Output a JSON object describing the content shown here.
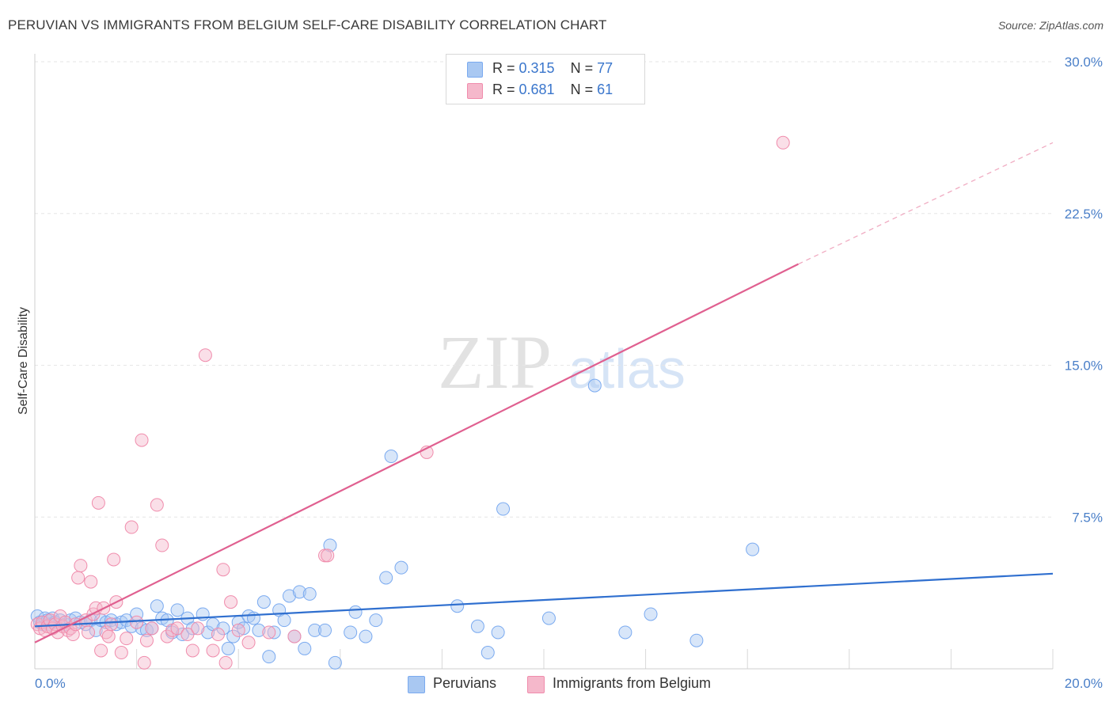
{
  "header": {
    "title": "PERUVIAN VS IMMIGRANTS FROM BELGIUM SELF-CARE DISABILITY CORRELATION CHART",
    "source": "Source: ZipAtlas.com"
  },
  "watermark": {
    "zip": "ZIP",
    "atlas": "atlas"
  },
  "legend": {
    "rows": [
      {
        "r_label": "R = ",
        "r_value": "0.315",
        "n_label": "N = ",
        "n_value": "77",
        "color": "#a9c8f2"
      },
      {
        "r_label": "R = ",
        "r_value": "0.681",
        "n_label": "N = ",
        "n_value": "61",
        "color": "#f5b8cb"
      }
    ]
  },
  "bottom_legend": {
    "items": [
      {
        "label": "Peruvians",
        "color": "#a9c8f2"
      },
      {
        "label": "Immigrants from Belgium",
        "color": "#f5b8cb"
      }
    ]
  },
  "chart_data": {
    "type": "scatter",
    "title": "PERUVIAN VS IMMIGRANTS FROM BELGIUM SELF-CARE DISABILITY CORRELATION CHART",
    "xlabel": "",
    "ylabel": "Self-Care Disability",
    "xlim": [
      0,
      20
    ],
    "ylim": [
      0,
      30
    ],
    "x_tick_labels": [
      "0.0%",
      "20.0%"
    ],
    "y_ticks": [
      7.5,
      15.0,
      22.5,
      30.0
    ],
    "y_tick_labels": [
      "7.5%",
      "15.0%",
      "22.5%",
      "30.0%"
    ],
    "grid": true,
    "legend_position": "top-center",
    "series": [
      {
        "name": "Peruvians",
        "color": "#7aaaf0",
        "trend": {
          "x": [
            0,
            20
          ],
          "y": [
            2.1,
            4.7
          ]
        },
        "points": [
          [
            0.05,
            2.6
          ],
          [
            0.1,
            2.3
          ],
          [
            0.15,
            2.2
          ],
          [
            0.2,
            2.5
          ],
          [
            0.25,
            2.4
          ],
          [
            0.3,
            2.2
          ],
          [
            0.35,
            2.5
          ],
          [
            0.4,
            2.3
          ],
          [
            0.5,
            2.4
          ],
          [
            0.6,
            2.2
          ],
          [
            0.7,
            2.4
          ],
          [
            0.8,
            2.5
          ],
          [
            0.9,
            2.3
          ],
          [
            1.0,
            2.2
          ],
          [
            1.1,
            2.4
          ],
          [
            1.2,
            1.9
          ],
          [
            1.3,
            2.4
          ],
          [
            1.4,
            2.3
          ],
          [
            1.5,
            2.4
          ],
          [
            1.6,
            2.2
          ],
          [
            1.7,
            2.3
          ],
          [
            1.8,
            2.4
          ],
          [
            1.9,
            2.1
          ],
          [
            2.0,
            2.7
          ],
          [
            2.1,
            2.0
          ],
          [
            2.2,
            1.9
          ],
          [
            2.3,
            2.0
          ],
          [
            2.4,
            3.1
          ],
          [
            2.5,
            2.5
          ],
          [
            2.6,
            2.4
          ],
          [
            2.7,
            1.8
          ],
          [
            2.8,
            2.9
          ],
          [
            2.9,
            1.7
          ],
          [
            3.0,
            2.5
          ],
          [
            3.1,
            2.0
          ],
          [
            3.3,
            2.7
          ],
          [
            3.4,
            1.8
          ],
          [
            3.5,
            2.2
          ],
          [
            3.7,
            2.0
          ],
          [
            3.8,
            1.0
          ],
          [
            3.9,
            1.6
          ],
          [
            4.0,
            2.3
          ],
          [
            4.1,
            2.0
          ],
          [
            4.2,
            2.6
          ],
          [
            4.3,
            2.5
          ],
          [
            4.4,
            1.9
          ],
          [
            4.5,
            3.3
          ],
          [
            4.6,
            0.6
          ],
          [
            4.7,
            1.8
          ],
          [
            4.8,
            2.9
          ],
          [
            4.9,
            2.4
          ],
          [
            5.0,
            3.6
          ],
          [
            5.1,
            1.6
          ],
          [
            5.2,
            3.8
          ],
          [
            5.3,
            1.0
          ],
          [
            5.4,
            3.7
          ],
          [
            5.5,
            1.9
          ],
          [
            5.7,
            1.9
          ],
          [
            5.8,
            6.1
          ],
          [
            5.9,
            0.3
          ],
          [
            6.2,
            1.8
          ],
          [
            6.3,
            2.8
          ],
          [
            6.5,
            1.6
          ],
          [
            6.7,
            2.4
          ],
          [
            6.9,
            4.5
          ],
          [
            7.0,
            10.5
          ],
          [
            7.2,
            5.0
          ],
          [
            8.3,
            3.1
          ],
          [
            8.7,
            2.1
          ],
          [
            8.9,
            0.8
          ],
          [
            9.1,
            1.8
          ],
          [
            9.2,
            7.9
          ],
          [
            10.1,
            2.5
          ],
          [
            11.0,
            14.0
          ],
          [
            11.6,
            1.8
          ],
          [
            12.1,
            2.7
          ],
          [
            13.0,
            1.4
          ],
          [
            14.1,
            5.9
          ]
        ]
      },
      {
        "name": "Immigrants from Belgium",
        "color": "#f08cac",
        "trend": {
          "x": [
            0,
            15
          ],
          "y": [
            1.3,
            20.0
          ]
        },
        "trend_dashed": {
          "x": [
            15,
            20
          ],
          "y": [
            20.0,
            26.0
          ]
        },
        "points": [
          [
            0.05,
            2.2
          ],
          [
            0.1,
            2.0
          ],
          [
            0.15,
            2.3
          ],
          [
            0.2,
            1.9
          ],
          [
            0.25,
            2.1
          ],
          [
            0.3,
            2.4
          ],
          [
            0.35,
            2.0
          ],
          [
            0.4,
            2.2
          ],
          [
            0.45,
            1.8
          ],
          [
            0.5,
            2.6
          ],
          [
            0.55,
            2.1
          ],
          [
            0.6,
            2.3
          ],
          [
            0.65,
            1.9
          ],
          [
            0.7,
            2.0
          ],
          [
            0.75,
            1.7
          ],
          [
            0.8,
            2.2
          ],
          [
            0.85,
            4.5
          ],
          [
            0.9,
            5.1
          ],
          [
            1.0,
            2.4
          ],
          [
            1.05,
            1.8
          ],
          [
            1.1,
            4.3
          ],
          [
            1.15,
            2.7
          ],
          [
            1.2,
            3.0
          ],
          [
            1.25,
            8.2
          ],
          [
            1.3,
            0.9
          ],
          [
            1.35,
            3.0
          ],
          [
            1.4,
            1.8
          ],
          [
            1.45,
            1.6
          ],
          [
            1.5,
            2.2
          ],
          [
            1.55,
            5.4
          ],
          [
            1.6,
            3.3
          ],
          [
            1.7,
            0.8
          ],
          [
            1.8,
            1.5
          ],
          [
            1.9,
            7.0
          ],
          [
            2.0,
            2.3
          ],
          [
            2.1,
            11.3
          ],
          [
            2.15,
            0.3
          ],
          [
            2.2,
            1.4
          ],
          [
            2.3,
            2.0
          ],
          [
            2.4,
            8.1
          ],
          [
            2.5,
            6.1
          ],
          [
            2.6,
            1.6
          ],
          [
            2.7,
            1.9
          ],
          [
            2.8,
            2.0
          ],
          [
            3.0,
            1.7
          ],
          [
            3.1,
            0.9
          ],
          [
            3.2,
            2.0
          ],
          [
            3.35,
            15.5
          ],
          [
            3.5,
            0.9
          ],
          [
            3.6,
            1.7
          ],
          [
            3.7,
            4.9
          ],
          [
            3.75,
            0.3
          ],
          [
            3.85,
            3.3
          ],
          [
            4.0,
            1.9
          ],
          [
            4.2,
            1.3
          ],
          [
            4.6,
            1.8
          ],
          [
            5.1,
            1.6
          ],
          [
            5.7,
            5.6
          ],
          [
            5.75,
            5.6
          ],
          [
            7.7,
            10.7
          ],
          [
            14.7,
            26.0
          ]
        ]
      }
    ]
  }
}
